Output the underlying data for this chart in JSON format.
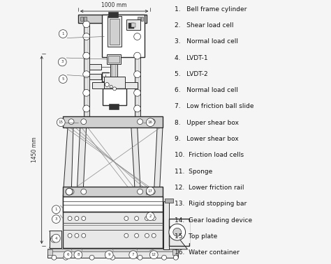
{
  "background_color": "#f5f5f5",
  "legend_items": [
    "1.   Bell frame cylinder",
    "2.   Shear load cell",
    "3.   Normal load cell",
    "4.   LVDT-1",
    "5.   LVDT-2",
    "6.   Normal load cell",
    "7.   Low friction ball slide",
    "8.   Upper shear box",
    "9.   Lower shear box",
    "10.  Friction load cells",
    "11.  Sponge",
    "12.  Lower friction rail",
    "13.  Rigid stopping bar",
    "14.  Gear loading device",
    "15.  Top plate",
    "16.  Water container"
  ],
  "dim_1000_text": "1000 mm",
  "dim_1450_text": "1450 mm",
  "lc": "#2a2a2a",
  "fc_light": "#e8e8e8",
  "fc_mid": "#d0d0d0",
  "fc_dark": "#b0b0b0",
  "fc_black": "#333333"
}
